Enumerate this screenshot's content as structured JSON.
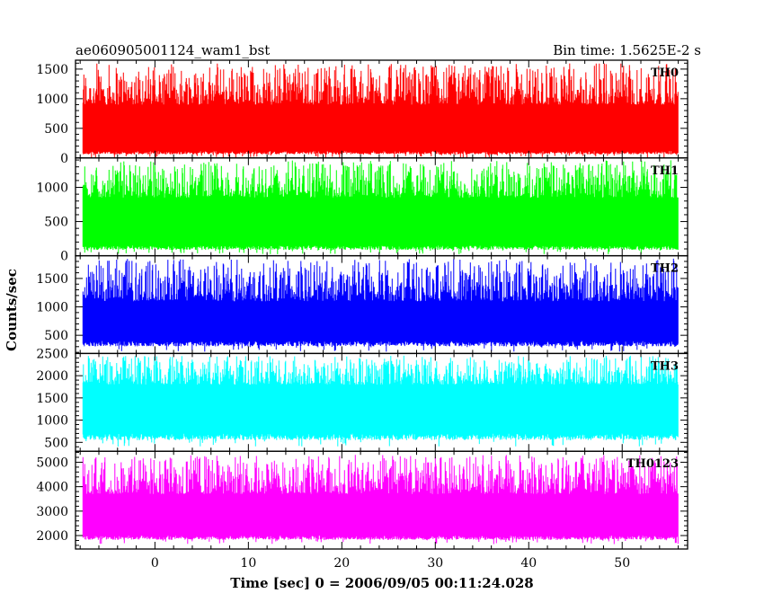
{
  "header": {
    "title": "ae060905001124_wam1_bst",
    "bin_time": "Bin time: 1.5625E-2 s"
  },
  "chart_data": {
    "type": "line",
    "xlabel": "Time [sec] 0 = 2006/09/05 00:11:24.028",
    "ylabel": "Counts/sec",
    "xlim": [
      -8.5,
      57
    ],
    "data_x_range": [
      -7.7,
      56.0
    ],
    "x_ticks": [
      0,
      10,
      20,
      30,
      40,
      50
    ],
    "x_minor_step": 2,
    "grid": false,
    "panels": [
      {
        "name": "TH0",
        "color": "#ff0000",
        "ylim": [
          0,
          1650
        ],
        "y_ticks": [
          0,
          500,
          1000,
          1500
        ],
        "y_minor_step": 100,
        "band_low": 120,
        "band_high": 900,
        "min_typical": 0,
        "max_typical": 1600
      },
      {
        "name": "TH1",
        "color": "#00ff00",
        "ylim": [
          0,
          1430
        ],
        "y_ticks": [
          0,
          500,
          1000
        ],
        "y_minor_step": 100,
        "band_low": 150,
        "band_high": 850,
        "min_typical": 20,
        "max_typical": 1400
      },
      {
        "name": "TH2",
        "color": "#0000ff",
        "ylim": [
          180,
          1900
        ],
        "y_ticks": [
          500,
          1000,
          1500
        ],
        "y_minor_step": 100,
        "band_low": 400,
        "band_high": 1100,
        "min_typical": 210,
        "max_typical": 1850
      },
      {
        "name": "TH3",
        "color": "#00ffff",
        "ylim": [
          300,
          2500
        ],
        "y_ticks": [
          500,
          1000,
          1500,
          2000,
          2500
        ],
        "y_minor_step": 100,
        "band_low": 700,
        "band_high": 1800,
        "min_typical": 400,
        "max_typical": 2450
      },
      {
        "name": "TH0123",
        "color": "#ff00ff",
        "ylim": [
          1450,
          5450
        ],
        "y_ticks": [
          2000,
          3000,
          4000,
          5000
        ],
        "y_minor_step": 200,
        "band_low": 2000,
        "band_high": 3700,
        "min_typical": 1650,
        "max_typical": 5300
      }
    ]
  }
}
